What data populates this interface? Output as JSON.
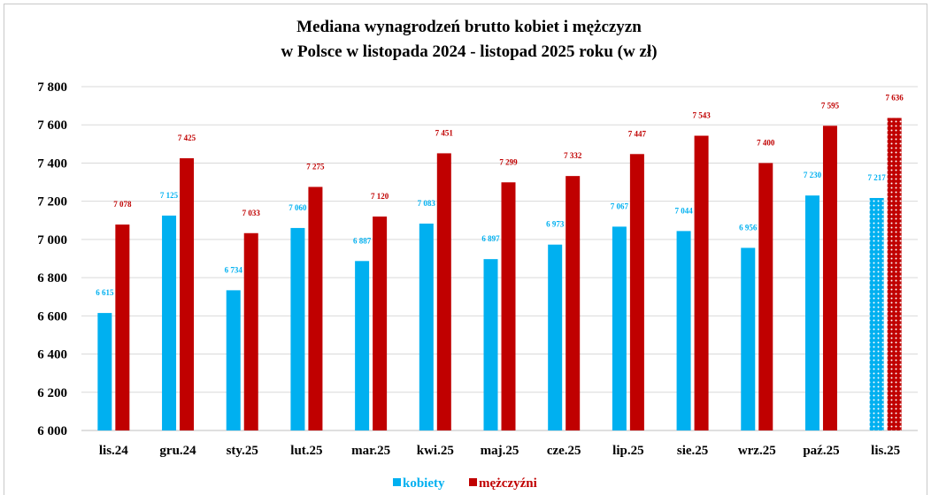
{
  "chart_data": {
    "type": "bar",
    "title": [
      "Mediana wynagrodzeń  brutto  kobiet i mężczyzn",
      "w  Polsce w  listopada  2024 - listopad  2025 roku (w  zł)"
    ],
    "categories": [
      "lis.24",
      "gru.24",
      "sty.25",
      "lut.25",
      "mar.25",
      "kwi.25",
      "maj.25",
      "cze.25",
      "lip.25",
      "sie.25",
      "wrz.25",
      "paź.25",
      "lis.25"
    ],
    "series": [
      {
        "name": "kobiety",
        "color": "#00b0f0",
        "values": [
          6615,
          7125,
          6734,
          7060,
          6887,
          7083,
          6897,
          6973,
          7067,
          7044,
          6956,
          7230,
          7217
        ],
        "labels": [
          "6 615",
          "7 125",
          "6 734",
          "7 060",
          "6 887",
          "7 083",
          "6 897",
          "6 973",
          "7 067",
          "7 044",
          "6 956",
          "7 230",
          "7 217"
        ]
      },
      {
        "name": "mężczyźni",
        "color": "#c00000",
        "values": [
          7078,
          7425,
          7033,
          7275,
          7120,
          7451,
          7299,
          7332,
          7447,
          7543,
          7400,
          7595,
          7636
        ],
        "labels": [
          "7 078",
          "7 425",
          "7 033",
          "7 275",
          "7 120",
          "7 451",
          "7 299",
          "7 332",
          "7 447",
          "7 543",
          "7 400",
          "7 595",
          "7 636"
        ]
      }
    ],
    "highlighted_category": "lis.25",
    "highlight_pattern": "dotted",
    "ylim": [
      6000,
      7800
    ],
    "yticks": [
      6000,
      6200,
      6400,
      6600,
      6800,
      7000,
      7200,
      7400,
      7600,
      7800
    ],
    "ytick_labels": [
      "6 000",
      "6 200",
      "6 400",
      "6 600",
      "6 800",
      "7 000",
      "7 200",
      "7 400",
      "7 600",
      "7 800"
    ],
    "grid": true,
    "legend_position": "bottom-center",
    "xlabel": "",
    "ylabel": ""
  }
}
